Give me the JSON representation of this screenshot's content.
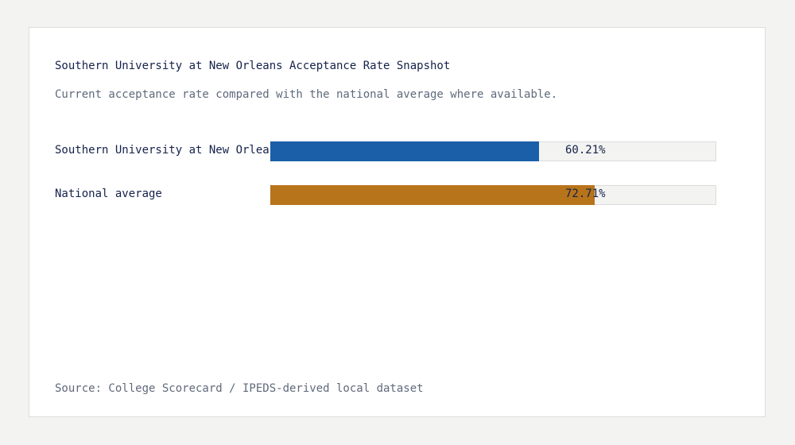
{
  "chart_data": {
    "type": "bar",
    "orientation": "horizontal",
    "title": "Southern University at New Orleans Acceptance Rate Snapshot",
    "subtitle": "Current acceptance rate compared with the national average where available.",
    "categories": [
      "Southern University at New Orleans",
      "National average"
    ],
    "values": [
      60.21,
      72.71
    ],
    "value_labels": [
      "60.21%",
      "72.71%"
    ],
    "colors": [
      "#1a5fa8",
      "#b8741a"
    ],
    "xlim": [
      0,
      100
    ],
    "grid": false,
    "legend": "none"
  },
  "footer": {
    "source": "Source: College Scorecard / IPEDS-derived local dataset"
  }
}
